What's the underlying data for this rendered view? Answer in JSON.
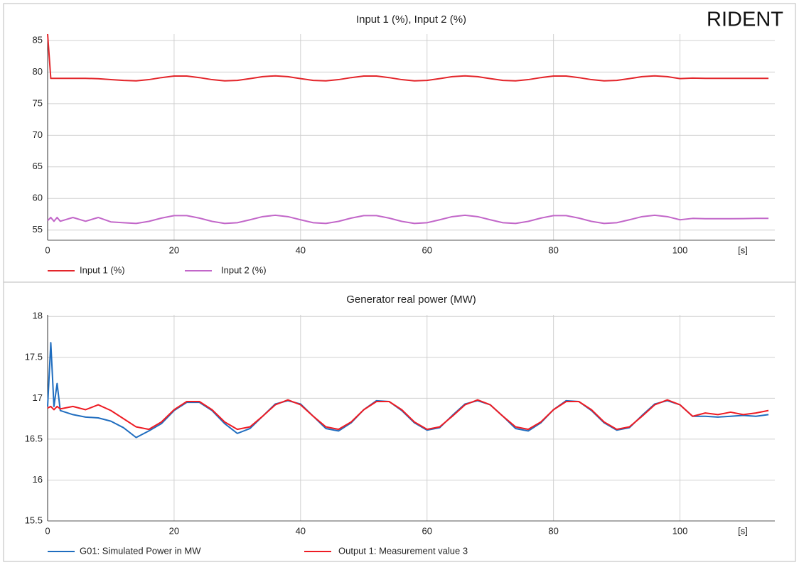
{
  "logo": "RIDENT",
  "chart_data": [
    {
      "type": "line",
      "title": "Input 1 (%), Input 2 (%)",
      "x_label": "[s]",
      "x": [
        0,
        0.5,
        1,
        1.5,
        2,
        4,
        6,
        8,
        10,
        12,
        14,
        16,
        18,
        20,
        22,
        24,
        26,
        28,
        30,
        32,
        34,
        36,
        38,
        40,
        42,
        44,
        46,
        48,
        50,
        52,
        54,
        56,
        58,
        60,
        62,
        64,
        66,
        68,
        70,
        72,
        74,
        76,
        78,
        80,
        82,
        84,
        86,
        88,
        90,
        92,
        94,
        96,
        98,
        100,
        102,
        104,
        106,
        108,
        110,
        112,
        114
      ],
      "series": [
        {
          "name": "Input 1 (%)",
          "color": "#e3262b",
          "values": [
            86,
            79,
            79,
            79,
            79,
            79,
            79,
            78.95,
            78.8,
            78.68,
            78.61,
            78.8,
            79.12,
            79.37,
            79.37,
            79.12,
            78.8,
            78.61,
            78.68,
            78.96,
            79.27,
            79.4,
            79.27,
            78.96,
            78.68,
            78.61,
            78.8,
            79.12,
            79.37,
            79.37,
            79.12,
            78.8,
            78.61,
            78.68,
            78.96,
            79.27,
            79.4,
            79.27,
            78.96,
            78.68,
            78.61,
            78.8,
            79.12,
            79.37,
            79.37,
            79.12,
            78.8,
            78.61,
            78.68,
            78.96,
            79.27,
            79.4,
            79.27,
            78.96,
            79.05,
            79,
            79,
            79,
            79,
            79,
            79
          ]
        },
        {
          "name": "Input 2 (%)",
          "color": "#c267c9",
          "values": [
            56.5,
            57,
            56.4,
            57,
            56.4,
            57,
            56.4,
            57,
            56.3,
            56.17,
            56.06,
            56.38,
            56.9,
            57.29,
            57.29,
            56.9,
            56.38,
            56.06,
            56.17,
            56.63,
            57.13,
            57.35,
            57.13,
            56.63,
            56.17,
            56.06,
            56.38,
            56.9,
            57.29,
            57.29,
            56.9,
            56.38,
            56.06,
            56.17,
            56.63,
            57.13,
            57.35,
            57.13,
            56.63,
            56.17,
            56.06,
            56.38,
            56.9,
            57.29,
            57.29,
            56.9,
            56.38,
            56.06,
            56.17,
            56.63,
            57.13,
            57.35,
            57.13,
            56.63,
            56.85,
            56.8,
            56.8,
            56.8,
            56.82,
            56.85,
            56.85
          ]
        }
      ],
      "xlim": [
        0,
        115
      ],
      "xticks": [
        0,
        20,
        40,
        60,
        80,
        100
      ],
      "ylim": [
        53.4,
        86
      ],
      "yticks": [
        55,
        60,
        65,
        70,
        75,
        80,
        85
      ],
      "grid": true,
      "legend": "bottom"
    },
    {
      "type": "line",
      "title": "Generator real power (MW)",
      "x_label": "[s]",
      "x": [
        0,
        0.5,
        1,
        1.5,
        2,
        4,
        6,
        8,
        10,
        12,
        14,
        16,
        18,
        20,
        22,
        24,
        26,
        28,
        30,
        32,
        34,
        36,
        38,
        40,
        42,
        44,
        46,
        48,
        50,
        52,
        54,
        56,
        58,
        60,
        62,
        64,
        66,
        68,
        70,
        72,
        74,
        76,
        78,
        80,
        82,
        84,
        86,
        88,
        90,
        92,
        94,
        96,
        98,
        100,
        102,
        104,
        106,
        108,
        110,
        112,
        114
      ],
      "series": [
        {
          "name": "G01: Simulated Power in MW",
          "color": "#1f6dbf",
          "values": [
            16.9,
            17.68,
            16.9,
            17.18,
            16.85,
            16.8,
            16.77,
            16.76,
            16.72,
            16.64,
            16.52,
            16.6,
            16.69,
            16.85,
            16.95,
            16.95,
            16.85,
            16.69,
            16.57,
            16.63,
            16.78,
            16.93,
            16.97,
            16.93,
            16.78,
            16.63,
            16.6,
            16.7,
            16.86,
            16.97,
            16.96,
            16.85,
            16.7,
            16.61,
            16.64,
            16.79,
            16.93,
            16.97,
            16.92,
            16.78,
            16.63,
            16.6,
            16.7,
            16.86,
            16.97,
            16.96,
            16.85,
            16.7,
            16.61,
            16.64,
            16.79,
            16.93,
            16.97,
            16.92,
            16.78,
            16.78,
            16.77,
            16.78,
            16.79,
            16.78,
            16.8
          ]
        },
        {
          "name": "Output 1: Measurement value 3",
          "color": "#ee1c24",
          "values": [
            16.88,
            16.9,
            16.86,
            16.9,
            16.87,
            16.9,
            16.86,
            16.92,
            16.85,
            16.75,
            16.65,
            16.62,
            16.71,
            16.86,
            16.96,
            16.96,
            16.86,
            16.71,
            16.62,
            16.65,
            16.78,
            16.92,
            16.98,
            16.92,
            16.78,
            16.65,
            16.62,
            16.71,
            16.86,
            16.96,
            16.96,
            16.86,
            16.71,
            16.62,
            16.65,
            16.78,
            16.92,
            16.98,
            16.92,
            16.78,
            16.65,
            16.62,
            16.71,
            16.86,
            16.96,
            16.96,
            16.86,
            16.71,
            16.62,
            16.65,
            16.78,
            16.92,
            16.98,
            16.92,
            16.78,
            16.82,
            16.8,
            16.83,
            16.8,
            16.82,
            16.85
          ]
        }
      ],
      "xlim": [
        0,
        115
      ],
      "xticks": [
        0,
        20,
        40,
        60,
        80,
        100
      ],
      "ylim": [
        15.5,
        18.02
      ],
      "yticks": [
        15.5,
        16,
        16.5,
        17,
        17.5,
        18
      ],
      "grid": true,
      "legend": "bottom"
    }
  ]
}
